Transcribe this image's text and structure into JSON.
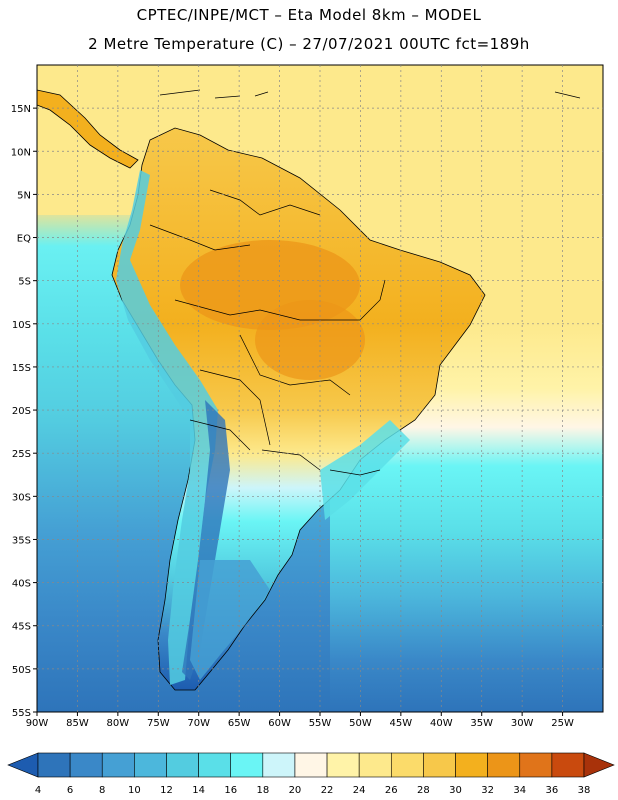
{
  "title_line1": "CPTEC/INPE/MCT –  Eta Model 8km – MODEL",
  "title_line2": "2 Metre Temperature (C) – 27/07/2021 00UTC fct=189h",
  "lat_labels": [
    "15N",
    "10N",
    "5N",
    "EQ",
    "5S",
    "10S",
    "15S",
    "20S",
    "25S",
    "30S",
    "35S",
    "40S",
    "45S",
    "50S",
    "55S"
  ],
  "lon_labels": [
    "90W",
    "85W",
    "80W",
    "75W",
    "70W",
    "65W",
    "60W",
    "55W",
    "50W",
    "45W",
    "40W",
    "35W",
    "30W",
    "25W"
  ],
  "colorbar": {
    "labels": [
      "4",
      "6",
      "8",
      "10",
      "12",
      "14",
      "16",
      "18",
      "20",
      "22",
      "24",
      "26",
      "28",
      "30",
      "32",
      "34",
      "36",
      "38"
    ],
    "colors": [
      "#1d5cb0",
      "#2e74ba",
      "#3a88c8",
      "#45a0d4",
      "#4cb7dc",
      "#53cce0",
      "#5adfe8",
      "#6af5f5",
      "#cdf5fa",
      "#fff6e6",
      "#fff3a8",
      "#fde98c",
      "#fbdb6a",
      "#f7c84a",
      "#f3b01e",
      "#ec9518",
      "#e0741a",
      "#c94a0e",
      "#a8320a"
    ]
  },
  "map": {
    "lon_range": [
      -90,
      -20
    ],
    "lat_range": [
      -55,
      20
    ],
    "grid": "dotted",
    "variable": "2 metre temperature",
    "units": "C"
  }
}
